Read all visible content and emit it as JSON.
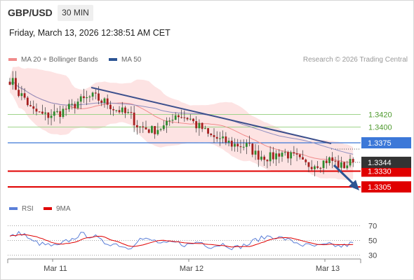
{
  "header": {
    "symbol": "GBP/USD",
    "timeframe": "30 MIN",
    "datetime": "Friday, March 13, 2026 12:38:51 AM CET"
  },
  "legend": {
    "ma20_label": "MA 20 + Bollinger Bands",
    "ma50_label": "MA 50",
    "rsi_label": "RSI",
    "rsi_ma_label": "9MA"
  },
  "copyright": "Research © 2026 Trading Central",
  "colors": {
    "up": "#2e8b2e",
    "down": "#a61f1f",
    "ma20": "#f08b8b",
    "bollinger": "#fde3e3",
    "ma50": "#2c5494",
    "resistance": "#9fd38a",
    "pivot": "#3c78d8",
    "support": "#e00000",
    "trendline": "#3c4f8c",
    "rsi": "#5b7fd8",
    "rsi_ma": "#e00000",
    "last_price_tag": "#333333"
  },
  "chart_data": [
    {
      "type": "candlestick",
      "title": "GBP/USD",
      "x_tick_labels": [
        "Mar 11",
        "Mar 12",
        "Mar 13"
      ],
      "y_range": [
        1.3285,
        1.3495
      ],
      "candles_per_day": 46,
      "levels": [
        {
          "label": "1.3420",
          "value": 1.342,
          "kind": "resistance"
        },
        {
          "label": "1.3400",
          "value": 1.34,
          "kind": "resistance"
        },
        {
          "label": "1.3375",
          "value": 1.3375,
          "kind": "pivot"
        },
        {
          "label": "1.3330",
          "value": 1.333,
          "kind": "support"
        },
        {
          "label": "1.3305",
          "value": 1.3305,
          "kind": "support"
        }
      ],
      "last_price": {
        "label": "1.3344",
        "value": 1.3344
      },
      "close_path": [
        1.3475,
        1.345,
        1.3425,
        1.3418,
        1.3422,
        1.343,
        1.3442,
        1.3448,
        1.344,
        1.3428,
        1.342,
        1.34,
        1.3395,
        1.34,
        1.342,
        1.3415,
        1.34,
        1.3385,
        1.3378,
        1.3372,
        1.337,
        1.3355,
        1.3352,
        1.336,
        1.3352,
        1.334,
        1.3342,
        1.3348,
        1.3338,
        1.3344
      ],
      "series": [
        {
          "name": "MA 20 + Bollinger Bands"
        },
        {
          "name": "MA 50"
        }
      ]
    },
    {
      "type": "line",
      "title": "RSI",
      "y_ticks": [
        70,
        50,
        30
      ],
      "ylim": [
        20,
        80
      ],
      "rsi_path": [
        55,
        60,
        48,
        44,
        42,
        50,
        58,
        56,
        47,
        45,
        40,
        52,
        50,
        45,
        47,
        44,
        48,
        42,
        45,
        40,
        44,
        52,
        56,
        53,
        48,
        43,
        42,
        44,
        42,
        46
      ],
      "series": [
        {
          "name": "RSI"
        },
        {
          "name": "9MA"
        }
      ]
    }
  ]
}
